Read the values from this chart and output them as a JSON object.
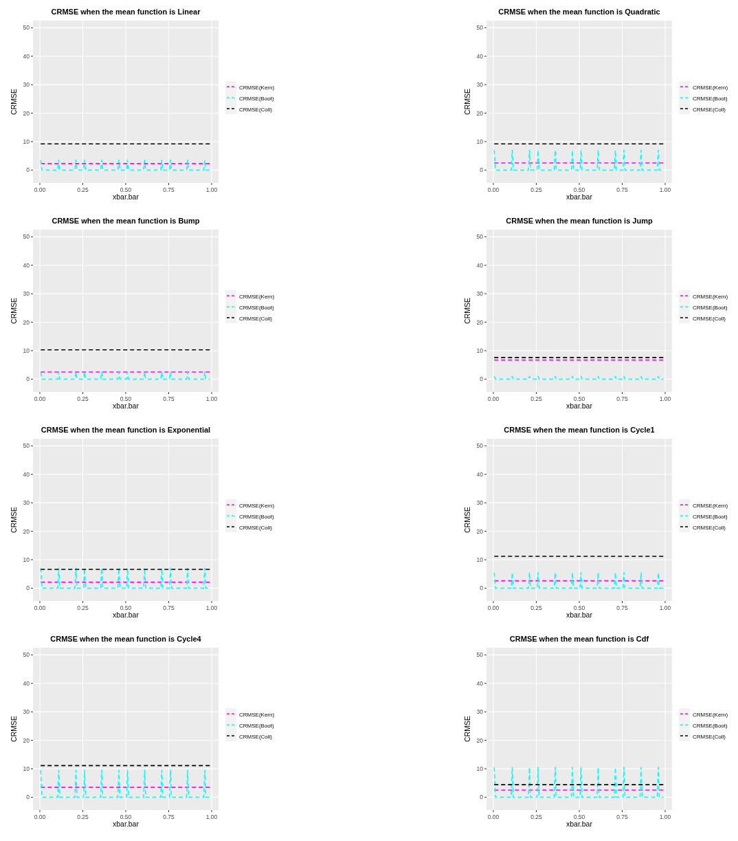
{
  "chart_data": [
    {
      "type": "line",
      "title": "CRMSE when the mean function is Linear",
      "xlabel": "xbar.bar",
      "ylabel": "CRMSE",
      "xlim": [
        -0.04,
        1.04
      ],
      "xticks": [
        {
          "value": 0,
          "label": "0.00"
        },
        {
          "value": 0.25,
          "label": "0.25"
        },
        {
          "value": 0.5,
          "label": "0.50"
        },
        {
          "value": 0.75,
          "label": "0.75"
        },
        {
          "value": 1,
          "label": "1.00"
        }
      ],
      "ylim": [
        -4.5,
        52.5
      ],
      "yticks": [
        0,
        10,
        20,
        30,
        40,
        50
      ],
      "grid": true,
      "legend": "right",
      "line_style": "dashed",
      "series": [
        {
          "name": "CRMSE(Kern)",
          "color": "#ff00ff",
          "x": [
            0.005,
            0.99
          ],
          "values": [
            2.3,
            2.3
          ]
        },
        {
          "name": "CRMSE(Boot)",
          "color": "#00ffff",
          "x": [
            0.005,
            0.012,
            0.104,
            0.11,
            0.116,
            0.204,
            0.21,
            0.216,
            0.254,
            0.26,
            0.266,
            0.354,
            0.36,
            0.366,
            0.454,
            0.46,
            0.466,
            0.504,
            0.51,
            0.516,
            0.604,
            0.61,
            0.616,
            0.704,
            0.71,
            0.716,
            0.754,
            0.76,
            0.766,
            0.854,
            0.86,
            0.866,
            0.954,
            0.96,
            0.966,
            0.99
          ],
          "values": [
            3.5,
            0,
            0,
            3.5,
            0,
            0,
            3.5,
            0,
            0,
            3.5,
            0,
            0,
            3.5,
            0,
            0,
            3.5,
            0,
            0,
            3.5,
            0,
            0,
            3.5,
            0,
            0,
            3.5,
            0,
            0,
            3.5,
            0,
            0,
            3.5,
            0,
            0,
            3.5,
            0,
            0
          ]
        },
        {
          "name": "CRMSE(Coll)",
          "color": "#000000",
          "x": [
            0.005,
            0.99
          ],
          "values": [
            9.2,
            9.2
          ]
        }
      ]
    },
    {
      "type": "line",
      "title": "CRMSE when the mean function is Quadratic",
      "xlabel": "xbar.bar",
      "ylabel": "CRMSE",
      "xlim": [
        -0.04,
        1.04
      ],
      "xticks": [
        {
          "value": 0,
          "label": "0.00"
        },
        {
          "value": 0.25,
          "label": "0.25"
        },
        {
          "value": 0.5,
          "label": "0.50"
        },
        {
          "value": 0.75,
          "label": "0.75"
        },
        {
          "value": 1,
          "label": "1.00"
        }
      ],
      "ylim": [
        -4.5,
        52.5
      ],
      "yticks": [
        0,
        10,
        20,
        30,
        40,
        50
      ],
      "grid": true,
      "legend": "right",
      "line_style": "dashed",
      "series": [
        {
          "name": "CRMSE(Kern)",
          "color": "#ff00ff",
          "x": [
            0.005,
            0.99
          ],
          "values": [
            2.5,
            2.5
          ]
        },
        {
          "name": "CRMSE(Boot)",
          "color": "#00ffff",
          "x": [
            0.005,
            0.012,
            0.104,
            0.11,
            0.116,
            0.204,
            0.21,
            0.216,
            0.254,
            0.26,
            0.266,
            0.354,
            0.36,
            0.366,
            0.454,
            0.46,
            0.466,
            0.504,
            0.51,
            0.516,
            0.604,
            0.61,
            0.616,
            0.704,
            0.71,
            0.716,
            0.754,
            0.76,
            0.766,
            0.854,
            0.86,
            0.866,
            0.954,
            0.96,
            0.966,
            0.99
          ],
          "values": [
            7,
            0,
            0,
            7,
            0,
            0,
            7,
            0,
            0,
            7,
            0,
            0,
            7,
            0,
            0,
            7,
            0,
            0,
            7,
            0,
            0,
            7,
            0,
            0,
            7,
            0,
            0,
            7,
            0,
            0,
            7,
            0,
            0,
            7,
            0,
            0
          ]
        },
        {
          "name": "CRMSE(Coll)",
          "color": "#000000",
          "x": [
            0.005,
            0.99
          ],
          "values": [
            9.2,
            9.2
          ]
        }
      ]
    },
    {
      "type": "line",
      "title": "CRMSE when the mean function is Bump",
      "xlabel": "xbar.bar",
      "ylabel": "CRMSE",
      "xlim": [
        -0.04,
        1.04
      ],
      "xticks": [
        {
          "value": 0,
          "label": "0.00"
        },
        {
          "value": 0.25,
          "label": "0.25"
        },
        {
          "value": 0.5,
          "label": "0.50"
        },
        {
          "value": 0.75,
          "label": "0.75"
        },
        {
          "value": 1,
          "label": "1.00"
        }
      ],
      "ylim": [
        -4.5,
        52.5
      ],
      "yticks": [
        0,
        10,
        20,
        30,
        40,
        50
      ],
      "grid": true,
      "legend": "right",
      "line_style": "dashed",
      "series": [
        {
          "name": "CRMSE(Kern)",
          "color": "#ff00ff",
          "x": [
            0.005,
            0.99
          ],
          "values": [
            2.5,
            2.5
          ]
        },
        {
          "name": "CRMSE(Boot)",
          "color": "#00ffff",
          "x": [
            0.005,
            0.012,
            0.104,
            0.11,
            0.116,
            0.204,
            0.21,
            0.216,
            0.254,
            0.26,
            0.266,
            0.354,
            0.36,
            0.366,
            0.454,
            0.46,
            0.466,
            0.504,
            0.51,
            0.516,
            0.604,
            0.61,
            0.616,
            0.704,
            0.71,
            0.716,
            0.754,
            0.76,
            0.766,
            0.854,
            0.86,
            0.866,
            0.954,
            0.96,
            0.966,
            0.99
          ],
          "values": [
            2.5,
            0,
            0,
            2.5,
            0,
            0,
            2.5,
            0,
            0,
            2.5,
            0,
            0,
            2.5,
            0,
            0,
            2.5,
            0,
            0,
            2.5,
            0,
            0,
            2.5,
            0,
            0,
            2.5,
            0,
            0,
            2.5,
            0,
            0,
            2.5,
            0,
            0,
            2.5,
            0,
            0
          ]
        },
        {
          "name": "CRMSE(Coll)",
          "color": "#000000",
          "x": [
            0.005,
            0.99
          ],
          "values": [
            10.3,
            10.3
          ]
        }
      ]
    },
    {
      "type": "line",
      "title": "CRMSE when the mean function is Jump",
      "xlabel": "xbar.bar",
      "ylabel": "CRMSE",
      "xlim": [
        -0.04,
        1.04
      ],
      "xticks": [
        {
          "value": 0,
          "label": "0.00"
        },
        {
          "value": 0.25,
          "label": "0.25"
        },
        {
          "value": 0.5,
          "label": "0.50"
        },
        {
          "value": 0.75,
          "label": "0.75"
        },
        {
          "value": 1,
          "label": "1.00"
        }
      ],
      "ylim": [
        -4.5,
        52.5
      ],
      "yticks": [
        0,
        10,
        20,
        30,
        40,
        50
      ],
      "grid": true,
      "legend": "right",
      "line_style": "dashed",
      "series": [
        {
          "name": "CRMSE(Kern)",
          "color": "#ff00ff",
          "x": [
            0.005,
            0.99
          ],
          "values": [
            6.7,
            6.7
          ]
        },
        {
          "name": "CRMSE(Boot)",
          "color": "#00ffff",
          "x": [
            0.005,
            0.012,
            0.104,
            0.11,
            0.116,
            0.204,
            0.21,
            0.216,
            0.254,
            0.26,
            0.266,
            0.354,
            0.36,
            0.366,
            0.454,
            0.46,
            0.466,
            0.504,
            0.51,
            0.516,
            0.604,
            0.61,
            0.616,
            0.704,
            0.71,
            0.716,
            0.754,
            0.76,
            0.766,
            0.854,
            0.86,
            0.866,
            0.954,
            0.96,
            0.966,
            0.99
          ],
          "values": [
            1,
            0,
            0,
            1,
            0,
            0,
            1,
            0,
            0,
            1,
            0,
            0,
            1,
            0,
            0,
            1,
            0,
            0,
            1,
            0,
            0,
            1,
            0,
            0,
            1,
            0,
            0,
            1,
            0,
            0,
            1,
            0,
            0,
            1,
            0,
            0
          ]
        },
        {
          "name": "CRMSE(Coll)",
          "color": "#000000",
          "x": [
            0.005,
            0.99
          ],
          "values": [
            7.6,
            7.6
          ]
        }
      ]
    },
    {
      "type": "line",
      "title": "CRMSE when the mean function is Exponential",
      "xlabel": "xbar.bar",
      "ylabel": "CRMSE",
      "xlim": [
        -0.04,
        1.04
      ],
      "xticks": [
        {
          "value": 0,
          "label": "0.00"
        },
        {
          "value": 0.25,
          "label": "0.25"
        },
        {
          "value": 0.5,
          "label": "0.50"
        },
        {
          "value": 0.75,
          "label": "0.75"
        },
        {
          "value": 1,
          "label": "1.00"
        }
      ],
      "ylim": [
        -4.5,
        52.5
      ],
      "yticks": [
        0,
        10,
        20,
        30,
        40,
        50
      ],
      "grid": true,
      "legend": "right",
      "line_style": "dashed",
      "series": [
        {
          "name": "CRMSE(Kern)",
          "color": "#ff00ff",
          "x": [
            0.005,
            0.99
          ],
          "values": [
            2.1,
            2.1
          ]
        },
        {
          "name": "CRMSE(Boot)",
          "color": "#00ffff",
          "x": [
            0.005,
            0.012,
            0.104,
            0.11,
            0.116,
            0.204,
            0.21,
            0.216,
            0.254,
            0.26,
            0.266,
            0.354,
            0.36,
            0.366,
            0.454,
            0.46,
            0.466,
            0.504,
            0.51,
            0.516,
            0.604,
            0.61,
            0.616,
            0.704,
            0.71,
            0.716,
            0.754,
            0.76,
            0.766,
            0.854,
            0.86,
            0.866,
            0.954,
            0.96,
            0.966,
            0.99
          ],
          "values": [
            7,
            0,
            0,
            7,
            0,
            0,
            7,
            0,
            0,
            7,
            0,
            0,
            7,
            0,
            0,
            7,
            0,
            0,
            7,
            0,
            0,
            7,
            0,
            0,
            7,
            0,
            0,
            7,
            0,
            0,
            7,
            0,
            0,
            7,
            0,
            0
          ]
        },
        {
          "name": "CRMSE(Coll)",
          "color": "#000000",
          "x": [
            0.005,
            0.99
          ],
          "values": [
            6.6,
            6.6
          ]
        }
      ]
    },
    {
      "type": "line",
      "title": "CRMSE when the mean function is Cycle1",
      "xlabel": "xbar.bar",
      "ylabel": "CRMSE",
      "xlim": [
        -0.04,
        1.04
      ],
      "xticks": [
        {
          "value": 0,
          "label": "0.00"
        },
        {
          "value": 0.25,
          "label": "0.25"
        },
        {
          "value": 0.5,
          "label": "0.50"
        },
        {
          "value": 0.75,
          "label": "0.75"
        },
        {
          "value": 1,
          "label": "1.00"
        }
      ],
      "ylim": [
        -4.5,
        52.5
      ],
      "yticks": [
        0,
        10,
        20,
        30,
        40,
        50
      ],
      "grid": true,
      "legend": "right",
      "line_style": "dashed",
      "series": [
        {
          "name": "CRMSE(Kern)",
          "color": "#ff00ff",
          "x": [
            0.005,
            0.99
          ],
          "values": [
            2.6,
            2.6
          ]
        },
        {
          "name": "CRMSE(Boot)",
          "color": "#00ffff",
          "x": [
            0.005,
            0.012,
            0.104,
            0.11,
            0.116,
            0.204,
            0.21,
            0.216,
            0.254,
            0.26,
            0.266,
            0.354,
            0.36,
            0.366,
            0.454,
            0.46,
            0.466,
            0.504,
            0.51,
            0.516,
            0.604,
            0.61,
            0.616,
            0.704,
            0.71,
            0.716,
            0.754,
            0.76,
            0.766,
            0.854,
            0.86,
            0.866,
            0.954,
            0.96,
            0.966,
            0.99
          ],
          "values": [
            5.5,
            0,
            0,
            5.5,
            0,
            0,
            5.5,
            0,
            0,
            5.5,
            0,
            0,
            5.5,
            0,
            0,
            5.5,
            0,
            0,
            5.5,
            0,
            0,
            5.5,
            0,
            0,
            5.5,
            0,
            0,
            5.5,
            0,
            0,
            5.5,
            0,
            0,
            5.5,
            0,
            0
          ]
        },
        {
          "name": "CRMSE(Coll)",
          "color": "#000000",
          "x": [
            0.005,
            0.99
          ],
          "values": [
            11.2,
            11.2
          ]
        }
      ]
    },
    {
      "type": "line",
      "title": "CRMSE when the mean function is Cycle4",
      "xlabel": "xbar.bar",
      "ylabel": "CRMSE",
      "xlim": [
        -0.04,
        1.04
      ],
      "xticks": [
        {
          "value": 0,
          "label": "0.00"
        },
        {
          "value": 0.25,
          "label": "0.25"
        },
        {
          "value": 0.5,
          "label": "0.50"
        },
        {
          "value": 0.75,
          "label": "0.75"
        },
        {
          "value": 1,
          "label": "1.00"
        }
      ],
      "ylim": [
        -4.5,
        52.5
      ],
      "yticks": [
        0,
        10,
        20,
        30,
        40,
        50
      ],
      "grid": true,
      "legend": "right",
      "line_style": "dashed",
      "series": [
        {
          "name": "CRMSE(Kern)",
          "color": "#ff00ff",
          "x": [
            0.005,
            0.99
          ],
          "values": [
            3.5,
            3.5
          ]
        },
        {
          "name": "CRMSE(Boot)",
          "color": "#00ffff",
          "x": [
            0.005,
            0.012,
            0.104,
            0.11,
            0.116,
            0.204,
            0.21,
            0.216,
            0.254,
            0.26,
            0.266,
            0.354,
            0.36,
            0.366,
            0.454,
            0.46,
            0.466,
            0.504,
            0.51,
            0.516,
            0.604,
            0.61,
            0.616,
            0.704,
            0.71,
            0.716,
            0.754,
            0.76,
            0.766,
            0.854,
            0.86,
            0.866,
            0.954,
            0.96,
            0.966,
            0.99
          ],
          "values": [
            9.5,
            0,
            0,
            9.5,
            0,
            0,
            9.5,
            0,
            0,
            9.5,
            0,
            0,
            9.5,
            0,
            0,
            9.5,
            0,
            0,
            9.5,
            0,
            0,
            9.5,
            0,
            0,
            9.5,
            0,
            0,
            9.5,
            0,
            0,
            9.5,
            0,
            0,
            9.5,
            0,
            0
          ]
        },
        {
          "name": "CRMSE(Coll)",
          "color": "#000000",
          "x": [
            0.005,
            0.99
          ],
          "values": [
            11.1,
            11.1
          ]
        }
      ]
    },
    {
      "type": "line",
      "title": "CRMSE when the mean function is Cdf",
      "xlabel": "xbar.bar",
      "ylabel": "CRMSE",
      "xlim": [
        -0.04,
        1.04
      ],
      "xticks": [
        {
          "value": 0,
          "label": "0.00"
        },
        {
          "value": 0.25,
          "label": "0.25"
        },
        {
          "value": 0.5,
          "label": "0.50"
        },
        {
          "value": 0.75,
          "label": "0.75"
        },
        {
          "value": 1,
          "label": "1.00"
        }
      ],
      "ylim": [
        -4.5,
        52.5
      ],
      "yticks": [
        0,
        10,
        20,
        30,
        40,
        50
      ],
      "grid": true,
      "legend": "right",
      "line_style": "dashed",
      "series": [
        {
          "name": "CRMSE(Kern)",
          "color": "#ff00ff",
          "x": [
            0.005,
            0.99
          ],
          "values": [
            2.5,
            2.5
          ]
        },
        {
          "name": "CRMSE(Boot)",
          "color": "#00ffff",
          "x": [
            0.005,
            0.012,
            0.104,
            0.11,
            0.116,
            0.204,
            0.21,
            0.216,
            0.254,
            0.26,
            0.266,
            0.354,
            0.36,
            0.366,
            0.454,
            0.46,
            0.466,
            0.504,
            0.51,
            0.516,
            0.604,
            0.61,
            0.616,
            0.704,
            0.71,
            0.716,
            0.754,
            0.76,
            0.766,
            0.854,
            0.86,
            0.866,
            0.954,
            0.96,
            0.966,
            0.99
          ],
          "values": [
            10.5,
            0,
            0,
            10.5,
            0,
            0,
            10.5,
            0,
            0,
            10.5,
            0,
            0,
            10.5,
            0,
            0,
            10.5,
            0,
            0,
            10.5,
            0,
            0,
            10.5,
            0,
            0,
            10.5,
            0,
            0,
            10.5,
            0,
            0,
            10.5,
            0,
            0,
            10.5,
            0,
            0
          ]
        },
        {
          "name": "CRMSE(Coll)",
          "color": "#000000",
          "x": [
            0.005,
            0.99
          ],
          "values": [
            4.4,
            4.4
          ]
        }
      ]
    }
  ]
}
